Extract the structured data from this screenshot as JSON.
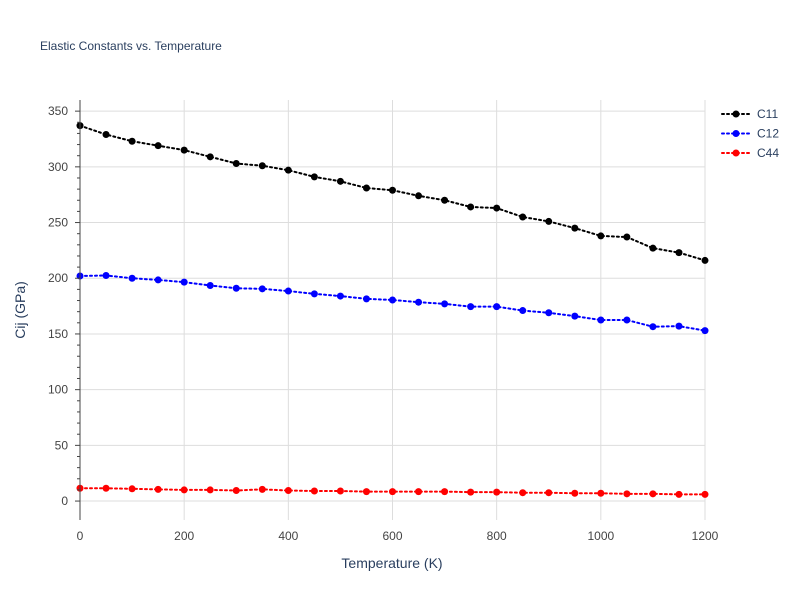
{
  "chart_data": {
    "type": "line",
    "title": "Elastic Constants vs. Temperature",
    "xlabel": "Temperature (K)",
    "ylabel": "Cij (GPa)",
    "xlim": [
      0,
      1200
    ],
    "ylim": [
      -17,
      360
    ],
    "x_ticks": [
      0,
      200,
      400,
      600,
      800,
      1000,
      1200
    ],
    "y_ticks": [
      0,
      50,
      100,
      150,
      200,
      250,
      300,
      350
    ],
    "grid": true,
    "legend_position": "top-right",
    "line_style": "dotted",
    "markers": true,
    "x": [
      0,
      50,
      100,
      150,
      200,
      250,
      300,
      350,
      400,
      450,
      500,
      550,
      600,
      650,
      700,
      750,
      800,
      850,
      900,
      950,
      1000,
      1050,
      1100,
      1150,
      1200
    ],
    "series": [
      {
        "name": "C11",
        "color": "#000000",
        "values": [
          337,
          329,
          323,
          319,
          315,
          309,
          303,
          301,
          297,
          291,
          287,
          281,
          279,
          274,
          270,
          264,
          263,
          255,
          251,
          245,
          238,
          237,
          227,
          223,
          216
        ]
      },
      {
        "name": "C12",
        "color": "#0000ff",
        "values": [
          202,
          202.5,
          200,
          198.5,
          196.5,
          193.5,
          191,
          190.5,
          188.5,
          186,
          184,
          181.5,
          180.5,
          178.5,
          177,
          174.5,
          174.5,
          171,
          169,
          166,
          162.5,
          162.5,
          156.5,
          157,
          153
        ]
      },
      {
        "name": "C44",
        "color": "#ff0000",
        "values": [
          11.5,
          11.5,
          11,
          10.5,
          10,
          10,
          9.5,
          10.5,
          9.5,
          9,
          9,
          8.5,
          8.5,
          8.5,
          8.5,
          8,
          8,
          7.5,
          7.5,
          7,
          7,
          6.5,
          6.5,
          6,
          6
        ]
      }
    ]
  }
}
